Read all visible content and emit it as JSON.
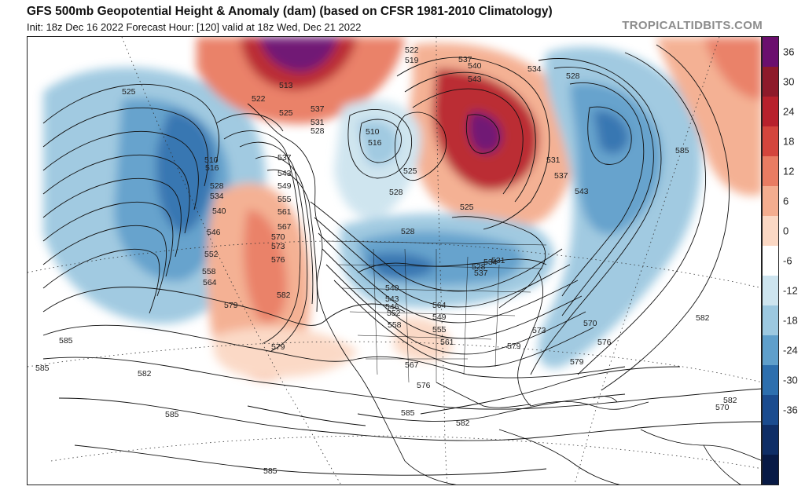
{
  "header": {
    "title": "GFS 500mb Geopotential Height & Anomaly (dam) (based on CFSR 1981-2010 Climatology)",
    "subtitle": "Init: 18z Dec 16 2022   Forecast Hour: [120]   valid at 18z Wed, Dec 21 2022",
    "credit": "TROPICALTIDBITS.COM"
  },
  "colorbar": {
    "ticks": [
      "36",
      "30",
      "24",
      "18",
      "12",
      "6",
      "0",
      "-6",
      "-12",
      "-18",
      "-24",
      "-30",
      "-36"
    ],
    "colors": [
      "#6b0f6e",
      "#8e1a2a",
      "#b8212c",
      "#d4453c",
      "#e97c62",
      "#f4ad8f",
      "#fbd8c4",
      "#ffffff",
      "#cde4ef",
      "#9cc8e0",
      "#5f9fcb",
      "#2d6fae",
      "#1b4c8f",
      "#0f2e66",
      "#081a45"
    ]
  },
  "map": {
    "contour_labels": [
      "525",
      "510",
      "516",
      "528",
      "534",
      "540",
      "546",
      "552",
      "558",
      "564",
      "579",
      "585",
      "585",
      "582",
      "585",
      "522",
      "513",
      "525",
      "537",
      "531",
      "528",
      "537",
      "543",
      "549",
      "555",
      "561",
      "567",
      "570",
      "573",
      "576",
      "582",
      "579",
      "510",
      "516",
      "519",
      "522",
      "525",
      "528",
      "537",
      "540",
      "543",
      "534",
      "528",
      "525",
      "528",
      "531",
      "537",
      "543",
      "528",
      "537",
      "534",
      "531",
      "540",
      "543",
      "546",
      "552",
      "558",
      "564",
      "549",
      "555",
      "561",
      "567",
      "576",
      "579",
      "573",
      "570",
      "576",
      "579",
      "582",
      "585",
      "570",
      "585",
      "582",
      "585",
      "582",
      "585",
      "585"
    ]
  }
}
